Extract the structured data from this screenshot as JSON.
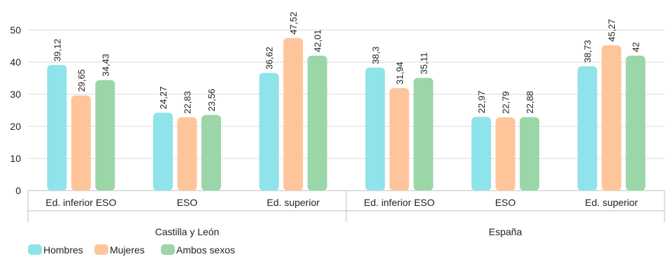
{
  "chart_data": {
    "type": "bar",
    "groups": [
      {
        "label": "Castilla y León",
        "categories": [
          "Ed. inferior ESO",
          "ESO",
          "Ed. superior"
        ],
        "series": [
          {
            "name": "Hombres",
            "values": [
              39.12,
              24.27,
              36.62
            ]
          },
          {
            "name": "Mujeres",
            "values": [
              29.65,
              22.83,
              47.52
            ]
          },
          {
            "name": "Ambos sexos",
            "values": [
              34.43,
              23.56,
              42.01
            ]
          }
        ]
      },
      {
        "label": "España",
        "categories": [
          "Ed. inferior ESO",
          "ESO",
          "Ed. superior"
        ],
        "series": [
          {
            "name": "Hombres",
            "values": [
              38.3,
              22.97,
              38.73
            ]
          },
          {
            "name": "Mujeres",
            "values": [
              31.94,
              22.79,
              45.27
            ]
          },
          {
            "name": "Ambos sexos",
            "values": [
              35.11,
              22.88,
              42
            ]
          }
        ]
      }
    ],
    "value_labels": [
      [
        "39,12",
        "24,27",
        "36,62"
      ],
      [
        "29,65",
        "22,83",
        "47,52"
      ],
      [
        "34,43",
        "23,56",
        "42,01"
      ],
      [
        "38,3",
        "22,97",
        "38,73"
      ],
      [
        "31,94",
        "22,79",
        "45,27"
      ],
      [
        "35,11",
        "22,88",
        "42"
      ]
    ],
    "ylim": [
      0,
      50
    ],
    "yticks": [
      "0",
      "10",
      "20",
      "30",
      "40",
      "50"
    ],
    "grid": true,
    "legend": [
      "Hombres",
      "Mujeres",
      "Ambos sexos"
    ],
    "legend_position": "bottom-left",
    "colors": [
      "#8fe3ea",
      "#ffc59a",
      "#9bd6a8"
    ],
    "grid_color": "#d9d9d9"
  }
}
